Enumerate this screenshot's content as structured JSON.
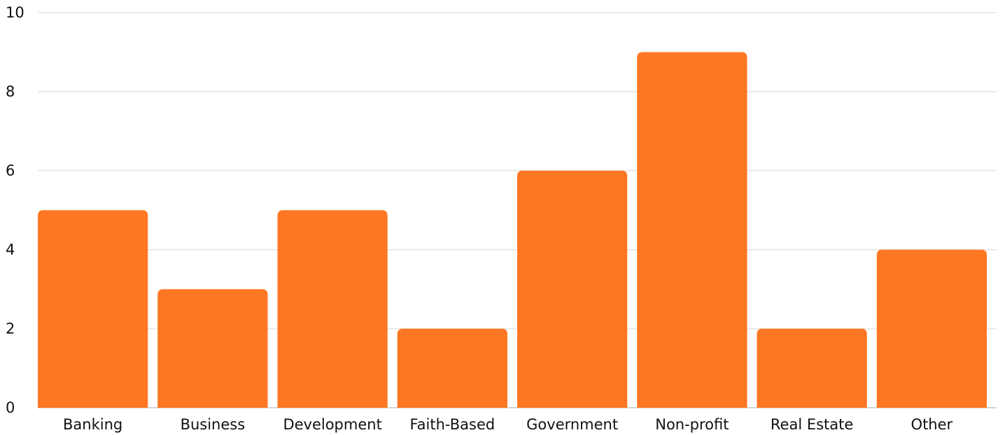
{
  "chart_data": {
    "type": "bar",
    "categories": [
      "Banking",
      "Business",
      "Development",
      "Faith-Based",
      "Government",
      "Non-profit",
      "Real Estate",
      "Other"
    ],
    "values": [
      5,
      3,
      5,
      2,
      6,
      9,
      2,
      4
    ],
    "title": "",
    "xlabel": "",
    "ylabel": "",
    "ylim": [
      0,
      10
    ],
    "yticks": [
      "0",
      "2",
      "4",
      "6",
      "8",
      "10"
    ],
    "grid": true,
    "legend": "none",
    "bar_color": "#ff7722"
  }
}
